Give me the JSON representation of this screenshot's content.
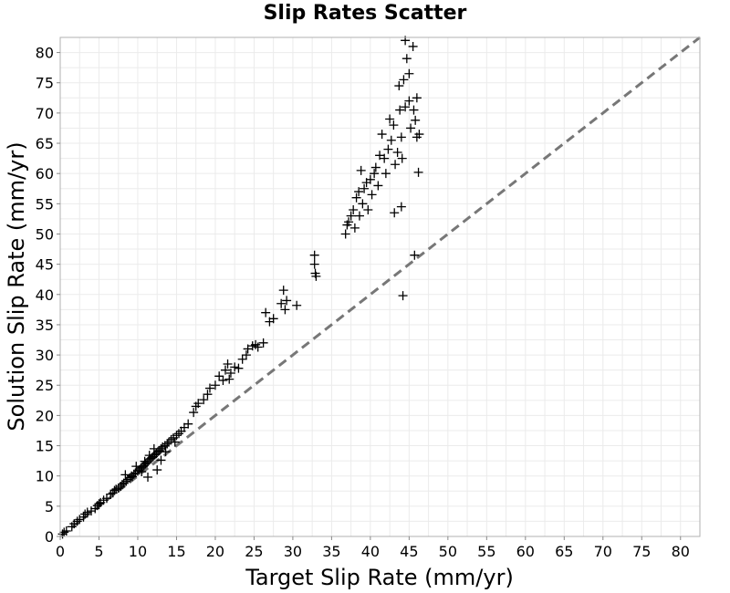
{
  "chart_data": {
    "type": "scatter",
    "title": "Slip Rates Scatter",
    "xlabel": "Target Slip Rate (mm/yr)",
    "ylabel": "Solution Slip Rate (mm/yr)",
    "xlim": [
      0,
      82.5
    ],
    "ylim": [
      0,
      82.5
    ],
    "xticks": [
      0,
      5,
      10,
      15,
      20,
      25,
      30,
      35,
      40,
      45,
      50,
      55,
      60,
      65,
      70,
      75,
      80
    ],
    "yticks": [
      0,
      5,
      10,
      15,
      20,
      25,
      30,
      35,
      40,
      45,
      50,
      55,
      60,
      65,
      70,
      75,
      80
    ],
    "grid": true,
    "marker": "plus",
    "marker_color": "#000000",
    "reference_line": {
      "style": "dashed",
      "color": "#777777",
      "x": [
        0,
        82.5
      ],
      "y": [
        0,
        82.5
      ]
    },
    "points": [
      [
        0.3,
        0.4
      ],
      [
        0.5,
        0.7
      ],
      [
        0.8,
        0.9
      ],
      [
        1.5,
        1.6
      ],
      [
        1.8,
        2.1
      ],
      [
        2.2,
        2.5
      ],
      [
        2.5,
        2.8
      ],
      [
        3.0,
        3.2
      ],
      [
        3.2,
        3.7
      ],
      [
        3.5,
        4.0
      ],
      [
        4.0,
        4.2
      ],
      [
        4.5,
        4.6
      ],
      [
        4.8,
        5.1
      ],
      [
        5.0,
        5.4
      ],
      [
        5.2,
        5.6
      ],
      [
        5.6,
        6.0
      ],
      [
        6.0,
        6.3
      ],
      [
        6.5,
        7.0
      ],
      [
        6.8,
        7.2
      ],
      [
        7.0,
        7.6
      ],
      [
        7.2,
        7.8
      ],
      [
        7.5,
        8.0
      ],
      [
        7.8,
        8.3
      ],
      [
        8.0,
        8.6
      ],
      [
        8.2,
        8.8
      ],
      [
        8.5,
        9.1
      ],
      [
        8.7,
        9.4
      ],
      [
        9.0,
        9.7
      ],
      [
        9.2,
        10.0
      ],
      [
        9.5,
        10.3
      ],
      [
        9.7,
        10.5
      ],
      [
        10.0,
        10.8
      ],
      [
        10.2,
        11.0
      ],
      [
        10.4,
        11.3
      ],
      [
        10.6,
        11.5
      ],
      [
        10.8,
        11.7
      ],
      [
        11.0,
        12.0
      ],
      [
        11.2,
        12.2
      ],
      [
        11.4,
        12.5
      ],
      [
        11.6,
        12.8
      ],
      [
        11.8,
        13.0
      ],
      [
        12.0,
        13.2
      ],
      [
        12.2,
        13.5
      ],
      [
        12.4,
        13.7
      ],
      [
        12.6,
        14.0
      ],
      [
        12.8,
        14.2
      ],
      [
        13.0,
        14.5
      ],
      [
        13.2,
        14.8
      ],
      [
        13.5,
        15.0
      ],
      [
        13.8,
        15.3
      ],
      [
        14.0,
        15.6
      ],
      [
        14.3,
        16.0
      ],
      [
        14.6,
        16.3
      ],
      [
        15.0,
        16.7
      ],
      [
        15.3,
        17.0
      ],
      [
        15.6,
        17.4
      ],
      [
        16.0,
        18.0
      ],
      [
        16.5,
        18.6
      ],
      [
        8.4,
        10.2
      ],
      [
        9.3,
        9.9
      ],
      [
        10.5,
        10.7
      ],
      [
        11.3,
        9.8
      ],
      [
        12.5,
        11.0
      ],
      [
        13.0,
        12.6
      ],
      [
        12.1,
        14.5
      ],
      [
        11.5,
        13.4
      ],
      [
        10.9,
        12.4
      ],
      [
        9.8,
        11.6
      ],
      [
        13.6,
        14.0
      ],
      [
        14.8,
        15.6
      ],
      [
        17.2,
        20.5
      ],
      [
        17.5,
        21.5
      ],
      [
        17.8,
        22.0
      ],
      [
        18.5,
        22.6
      ],
      [
        19.0,
        23.5
      ],
      [
        19.3,
        24.5
      ],
      [
        20.0,
        25.0
      ],
      [
        20.5,
        26.5
      ],
      [
        21.0,
        25.8
      ],
      [
        21.3,
        27.5
      ],
      [
        21.6,
        28.5
      ],
      [
        21.8,
        26.0
      ],
      [
        22.0,
        27.0
      ],
      [
        22.5,
        28.0
      ],
      [
        23.0,
        27.8
      ],
      [
        23.5,
        29.3
      ],
      [
        24.0,
        30.0
      ],
      [
        24.2,
        31.0
      ],
      [
        24.8,
        31.5
      ],
      [
        25.2,
        31.7
      ],
      [
        25.5,
        31.3
      ],
      [
        26.2,
        32.0
      ],
      [
        26.5,
        37.0
      ],
      [
        27.0,
        35.5
      ],
      [
        27.5,
        36.0
      ],
      [
        28.5,
        38.5
      ],
      [
        28.8,
        40.7
      ],
      [
        29.0,
        37.5
      ],
      [
        29.2,
        39.0
      ],
      [
        30.5,
        38.2
      ],
      [
        32.8,
        46.5
      ],
      [
        32.8,
        45.0
      ],
      [
        32.9,
        43.5
      ],
      [
        33.0,
        43.0
      ],
      [
        36.8,
        50.0
      ],
      [
        37.0,
        51.5
      ],
      [
        37.2,
        52.0
      ],
      [
        37.5,
        53.0
      ],
      [
        37.8,
        54.0
      ],
      [
        38.0,
        51.0
      ],
      [
        38.2,
        56.0
      ],
      [
        38.5,
        57.0
      ],
      [
        38.6,
        53.0
      ],
      [
        38.8,
        60.5
      ],
      [
        39.0,
        55.0
      ],
      [
        39.2,
        57.5
      ],
      [
        39.5,
        58.5
      ],
      [
        39.7,
        54.0
      ],
      [
        40.0,
        59.0
      ],
      [
        40.2,
        56.5
      ],
      [
        40.5,
        60.0
      ],
      [
        40.7,
        61.0
      ],
      [
        41.0,
        58.0
      ],
      [
        41.2,
        63.0
      ],
      [
        41.5,
        66.5
      ],
      [
        41.8,
        62.5
      ],
      [
        42.0,
        60.0
      ],
      [
        42.3,
        64.0
      ],
      [
        42.5,
        69.0
      ],
      [
        42.7,
        65.5
      ],
      [
        43.0,
        68.0
      ],
      [
        43.1,
        53.5
      ],
      [
        43.2,
        61.5
      ],
      [
        43.5,
        63.5
      ],
      [
        43.7,
        74.5
      ],
      [
        43.8,
        70.5
      ],
      [
        44.0,
        54.5
      ],
      [
        44.0,
        66.0
      ],
      [
        44.1,
        62.5
      ],
      [
        44.2,
        39.8
      ],
      [
        44.3,
        75.5
      ],
      [
        44.5,
        71.0
      ],
      [
        44.5,
        82.0
      ],
      [
        44.7,
        79.0
      ],
      [
        45.0,
        76.5
      ],
      [
        45.0,
        72.0
      ],
      [
        45.2,
        67.5
      ],
      [
        45.5,
        81.0
      ],
      [
        45.6,
        70.5
      ],
      [
        45.7,
        46.5
      ],
      [
        45.8,
        68.8
      ],
      [
        46.0,
        72.5
      ],
      [
        46.0,
        66.0
      ],
      [
        46.2,
        60.2
      ],
      [
        46.3,
        66.5
      ]
    ]
  }
}
